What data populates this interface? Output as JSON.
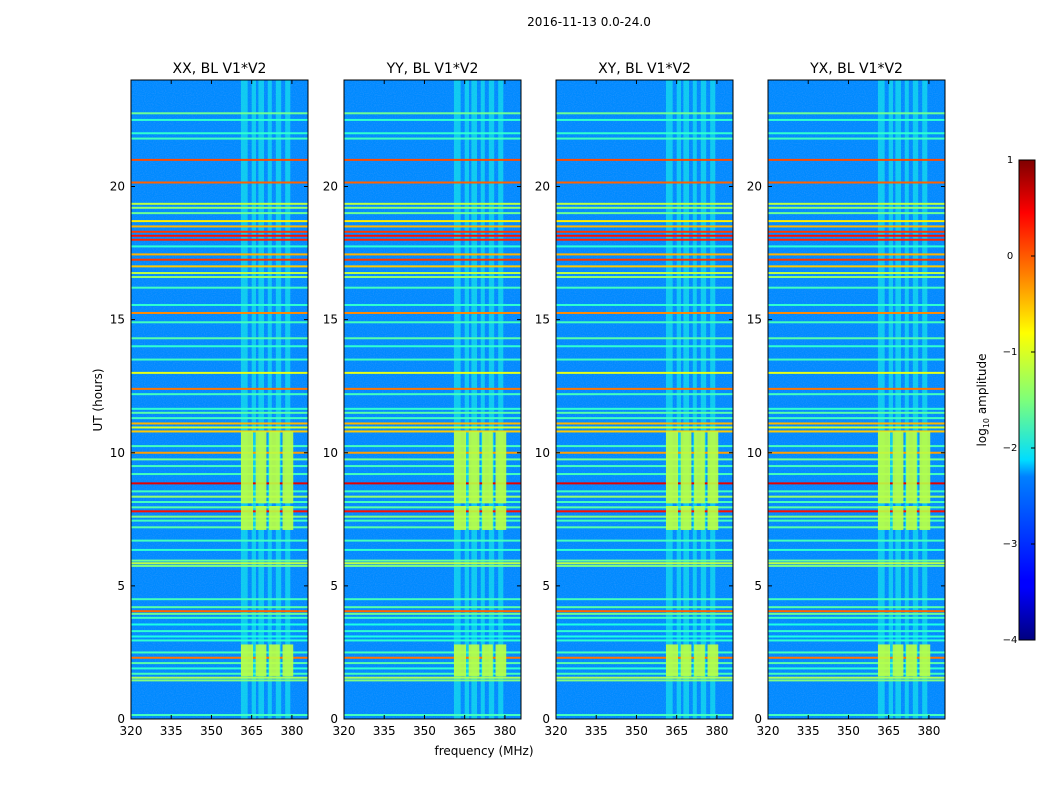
{
  "suptitle": "2016-11-13 0.0-24.0",
  "chart_data": {
    "type": "heatmap",
    "panel_count": 4,
    "panels": [
      {
        "title": "XX, BL V1*V2",
        "key": "xx"
      },
      {
        "title": "YY, BL V1*V2",
        "key": "yy"
      },
      {
        "title": "XY, BL V1*V2",
        "key": "xy"
      },
      {
        "title": "YX, BL V1*V2",
        "key": "yx"
      }
    ],
    "xlabel": "frequency (MHz)",
    "ylabel": "UT (hours)",
    "xlim": [
      320,
      386
    ],
    "ylim": [
      0,
      24
    ],
    "x_ticks": [
      320,
      335,
      350,
      365,
      380
    ],
    "y_ticks": [
      0,
      5,
      10,
      15,
      20
    ],
    "colorbar": {
      "label_prefix": "log",
      "label_sub": "10",
      "label_suffix": " amplitude",
      "range": [
        -4,
        1
      ],
      "ticks": [
        1,
        0,
        -1,
        -2,
        -3,
        -4
      ],
      "tick_labels": [
        "1",
        "0",
        "−1",
        "−2",
        "−3",
        "−4"
      ],
      "colormap": "jet"
    },
    "background_level": -2.7,
    "rfi_channel_bands_mhz": [
      [
        361,
        363.5
      ],
      [
        365,
        366.6
      ],
      [
        367.5,
        369.6
      ],
      [
        371,
        372.5
      ],
      [
        374,
        376
      ],
      [
        377.5,
        379.4
      ]
    ],
    "strong_blocks": {
      "freq_bands_mhz": [
        [
          361,
          365.5
        ],
        [
          366.5,
          370.5
        ],
        [
          371.5,
          375.5
        ],
        [
          376.5,
          380.5
        ]
      ],
      "time_ranges_h": [
        [
          1.6,
          2.8
        ],
        [
          7.1,
          8.0
        ],
        [
          8.1,
          10.8
        ]
      ],
      "level": -1.2
    },
    "horizontal_lines": [
      {
        "t": 0.15,
        "level": -1.8
      },
      {
        "t": 1.45,
        "level": -1.5
      },
      {
        "t": 1.55,
        "level": -1.3
      },
      {
        "t": 1.7,
        "level": -1.8
      },
      {
        "t": 1.9,
        "level": -1.9
      },
      {
        "t": 2.1,
        "level": -1.7
      },
      {
        "t": 2.3,
        "level": -0.2
      },
      {
        "t": 2.5,
        "level": -1.8
      },
      {
        "t": 2.95,
        "level": -1.9
      },
      {
        "t": 3.1,
        "level": -2.0
      },
      {
        "t": 3.3,
        "level": -1.9
      },
      {
        "t": 3.55,
        "level": -2.0
      },
      {
        "t": 3.8,
        "level": -1.8
      },
      {
        "t": 3.95,
        "level": -1.6
      },
      {
        "t": 4.05,
        "level": -0.1
      },
      {
        "t": 4.2,
        "level": -1.7
      },
      {
        "t": 4.5,
        "level": -1.8
      },
      {
        "t": 5.75,
        "level": -1.5
      },
      {
        "t": 5.85,
        "level": -1.2
      },
      {
        "t": 5.95,
        "level": -1.6
      },
      {
        "t": 6.35,
        "level": -1.9
      },
      {
        "t": 6.7,
        "level": -1.8
      },
      {
        "t": 7.2,
        "level": -1.7
      },
      {
        "t": 7.45,
        "level": -1.8
      },
      {
        "t": 7.6,
        "level": -1.5
      },
      {
        "t": 7.8,
        "level": 0.3
      },
      {
        "t": 7.95,
        "level": -1.7
      },
      {
        "t": 8.15,
        "level": -1.8
      },
      {
        "t": 8.35,
        "level": -1.4
      },
      {
        "t": 8.55,
        "level": -1.8
      },
      {
        "t": 8.85,
        "level": 0.5
      },
      {
        "t": 9.2,
        "level": -1.8
      },
      {
        "t": 9.5,
        "level": -1.8
      },
      {
        "t": 9.75,
        "level": -1.6
      },
      {
        "t": 10.0,
        "level": -0.4
      },
      {
        "t": 10.25,
        "level": -1.8
      },
      {
        "t": 10.8,
        "level": -0.6
      },
      {
        "t": 10.95,
        "level": -1.1
      },
      {
        "t": 11.1,
        "level": -0.5
      },
      {
        "t": 11.3,
        "level": -1.8
      },
      {
        "t": 11.5,
        "level": -1.7
      },
      {
        "t": 11.65,
        "level": -1.9
      },
      {
        "t": 12.2,
        "level": -1.8
      },
      {
        "t": 12.4,
        "level": -0.2
      },
      {
        "t": 13.0,
        "level": -1.0
      },
      {
        "t": 13.5,
        "level": -1.8
      },
      {
        "t": 14.0,
        "level": -1.9
      },
      {
        "t": 14.3,
        "level": -1.7
      },
      {
        "t": 14.9,
        "level": -1.8
      },
      {
        "t": 15.25,
        "level": -0.3
      },
      {
        "t": 15.55,
        "level": -1.9
      },
      {
        "t": 16.2,
        "level": -1.8
      },
      {
        "t": 16.6,
        "level": -1.4
      },
      {
        "t": 16.75,
        "level": -1.2
      },
      {
        "t": 17.0,
        "level": -0.6
      },
      {
        "t": 17.25,
        "level": 0.1
      },
      {
        "t": 17.45,
        "level": -0.5
      },
      {
        "t": 17.75,
        "level": -1.9
      },
      {
        "t": 18.0,
        "level": 0.2
      },
      {
        "t": 18.15,
        "level": 0.3
      },
      {
        "t": 18.3,
        "level": 0.1
      },
      {
        "t": 18.5,
        "level": -0.5
      },
      {
        "t": 18.7,
        "level": -0.8
      },
      {
        "t": 19.0,
        "level": -1.6
      },
      {
        "t": 19.2,
        "level": -1.4
      },
      {
        "t": 19.35,
        "level": -1.2
      },
      {
        "t": 20.15,
        "level": -0.1
      },
      {
        "t": 21.0,
        "level": 0.0
      },
      {
        "t": 21.8,
        "level": -1.8
      },
      {
        "t": 22.0,
        "level": -1.9
      },
      {
        "t": 22.5,
        "level": -1.9
      },
      {
        "t": 22.75,
        "level": -1.6
      }
    ]
  }
}
